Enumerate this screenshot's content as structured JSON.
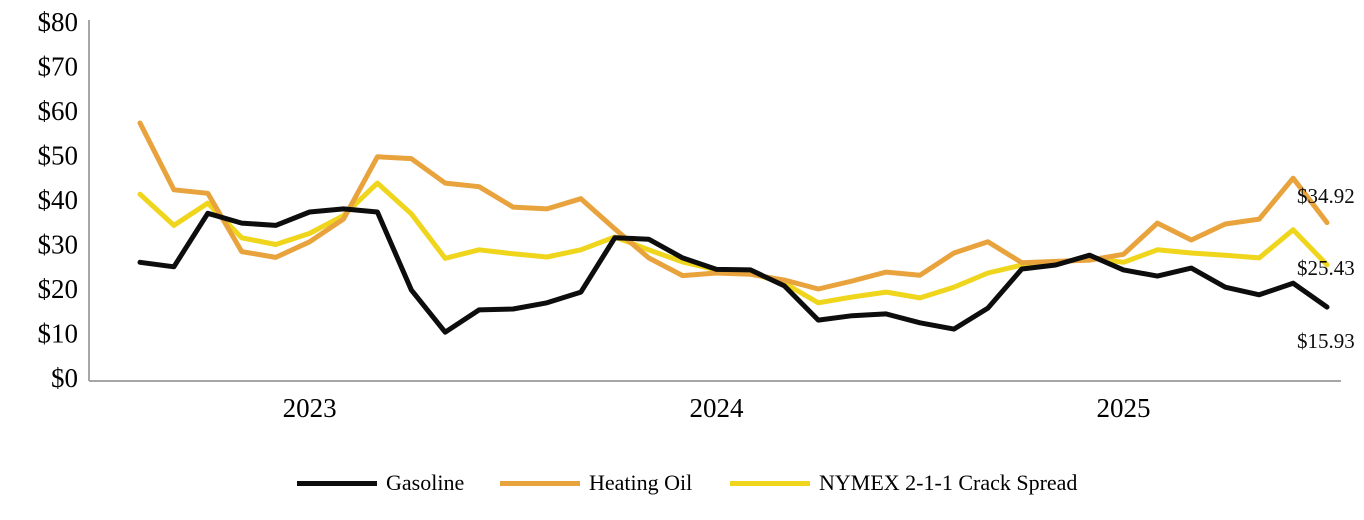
{
  "chart_data": {
    "type": "line",
    "title": "",
    "x": [
      "Aug-22",
      "Sep-22",
      "Oct-22",
      "Nov-22",
      "Dec-22",
      "Jan-23",
      "Feb-23",
      "Mar-23",
      "Apr-23",
      "May-23",
      "Jun-23",
      "Jul-23",
      "Aug-23",
      "Sep-23",
      "Oct-23",
      "Nov-23",
      "Dec-23",
      "Jan-24",
      "Feb-24",
      "Mar-24",
      "Apr-24",
      "May-24",
      "Jun-24",
      "Jul-24",
      "Aug-24",
      "Sep-24",
      "Oct-24",
      "Nov-24",
      "Dec-24",
      "Jan-25",
      "Feb-25",
      "Mar-25",
      "Apr-25",
      "May-25",
      "Jun-25",
      "Jul-25"
    ],
    "x_tick_labels": [
      "2023",
      "2024",
      "2025"
    ],
    "x_tick_month_index": [
      5,
      17,
      29
    ],
    "y_tick_labels": [
      "$0",
      "$10",
      "$20",
      "$30",
      "$40",
      "$50",
      "$60",
      "$70",
      "$80"
    ],
    "y_tick_values": [
      0,
      10,
      20,
      30,
      40,
      50,
      60,
      70,
      80
    ],
    "ylim": [
      0,
      80
    ],
    "grid": false,
    "legend_position": "bottom",
    "axis_color": "#a6a6a6",
    "series": [
      {
        "name": "Gasoline",
        "color": "#0d0d0d",
        "values": [
          26.0,
          25.0,
          37.0,
          34.8,
          34.3,
          37.3,
          38.0,
          37.3,
          19.8,
          10.3,
          15.3,
          15.5,
          16.9,
          19.3,
          31.5,
          31.2,
          27.0,
          24.4,
          24.3,
          20.7,
          13.0,
          14.0,
          14.4,
          12.4,
          11.0,
          15.7,
          24.5,
          25.4,
          27.6,
          24.3,
          22.9,
          24.7,
          20.4,
          18.7,
          21.3,
          15.93
        ]
      },
      {
        "name": "Heating Oil",
        "color": "#e8a33d",
        "values": [
          57.3,
          42.3,
          41.5,
          28.4,
          27.1,
          30.6,
          35.7,
          49.7,
          49.3,
          43.8,
          43.0,
          38.4,
          38.0,
          40.3,
          33.5,
          27.0,
          23.0,
          23.6,
          23.3,
          22.0,
          20.0,
          21.8,
          23.8,
          23.1,
          28.1,
          30.6,
          25.9,
          26.2,
          26.5,
          27.8,
          34.8,
          31.0,
          34.6,
          35.7,
          44.9,
          34.92
        ]
      },
      {
        "name": "NYMEX 2-1-1 Crack Spread",
        "color": "#efd51c",
        "values": [
          41.3,
          34.3,
          39.3,
          31.5,
          30.0,
          32.5,
          36.5,
          43.8,
          36.9,
          26.9,
          28.8,
          27.9,
          27.2,
          28.8,
          31.7,
          28.8,
          26.1,
          24.3,
          23.6,
          21.3,
          16.9,
          18.2,
          19.3,
          18.0,
          20.4,
          23.6,
          25.4,
          25.8,
          27.0,
          26.0,
          28.8,
          28.1,
          27.6,
          27.0,
          33.3,
          25.43
        ]
      }
    ],
    "end_labels": [
      {
        "series": "Heating Oil",
        "text": "$34.92"
      },
      {
        "series": "NYMEX 2-1-1 Crack Spread",
        "text": "$25.43"
      },
      {
        "series": "Gasoline",
        "text": "$15.93"
      }
    ]
  },
  "legend": {
    "items": [
      {
        "label": "Gasoline",
        "color": "#0d0d0d"
      },
      {
        "label": "Heating Oil",
        "color": "#e8a33d"
      },
      {
        "label": "NYMEX 2-1-1 Crack Spread",
        "color": "#efd51c"
      }
    ]
  }
}
